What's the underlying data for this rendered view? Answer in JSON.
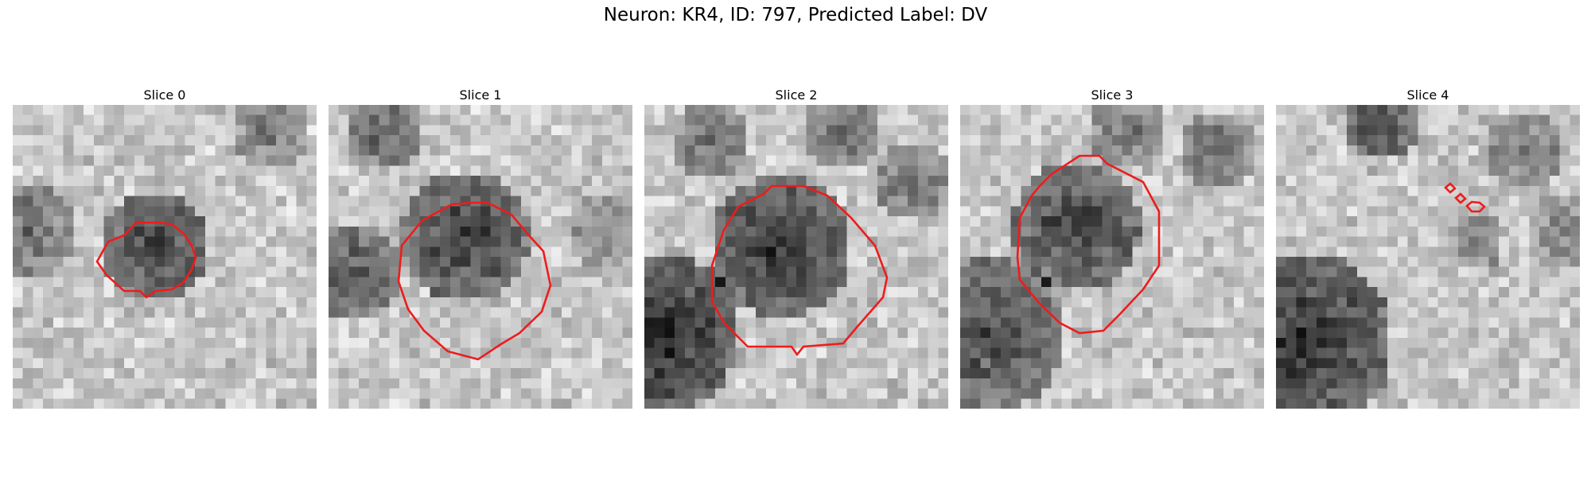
{
  "figure": {
    "title": "Neuron: KR4, ID: 797, Predicted Label: DV",
    "contour_color": "#ee1c1c"
  },
  "panels": [
    {
      "title": "Slice 0"
    },
    {
      "title": "Slice 1"
    },
    {
      "title": "Slice 2"
    },
    {
      "title": "Slice 3"
    },
    {
      "title": "Slice 4"
    }
  ]
}
